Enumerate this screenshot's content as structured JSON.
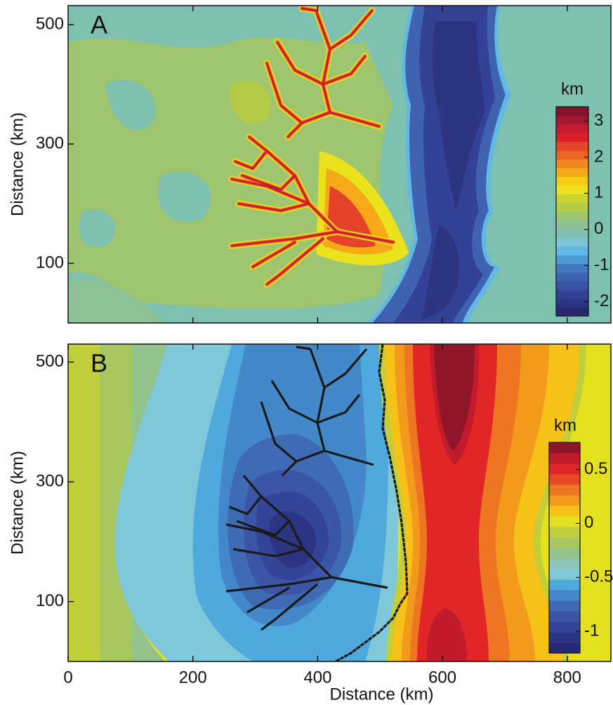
{
  "chart_data": [
    {
      "type": "contour",
      "label": "A",
      "y_label": "Distance (km)",
      "xlim": [
        0,
        870
      ],
      "xticks": [
        200,
        400,
        600,
        800
      ],
      "ylim": [
        0,
        532
      ],
      "yticks": [
        100,
        300,
        500
      ],
      "colorbar": {
        "label": "km",
        "lim": [
          -2.4,
          3.4
        ],
        "ticks": [
          -2,
          -1,
          0,
          1,
          2,
          3
        ],
        "colormap": [
          "#29286e",
          "#2d3482",
          "#334295",
          "#3a52a3",
          "#3f63b1",
          "#4279bf",
          "#4c9ad6",
          "#62b8e4",
          "#7ec6d6",
          "#7fc1b0",
          "#8cc296",
          "#9fc66e",
          "#b4cb48",
          "#cdd530",
          "#eae21d",
          "#f8cc14",
          "#f7a818",
          "#f2861f",
          "#ec6424",
          "#e5432a",
          "#dd2027",
          "#c31b2d",
          "#a31730",
          "#84122b"
        ]
      }
    },
    {
      "type": "contour",
      "label": "B",
      "y_label": "Distance (km)",
      "x_label": "Distance (km)",
      "xlim": [
        0,
        870
      ],
      "xticks": [
        0,
        200,
        400,
        600,
        800
      ],
      "ylim": [
        0,
        530
      ],
      "yticks": [
        100,
        300,
        500
      ],
      "colorbar": {
        "label": "km",
        "lim": [
          -1.2,
          0.75
        ],
        "ticks": [
          -1,
          -0.5,
          0,
          0.5
        ],
        "colormap": [
          "#262a72",
          "#2c3584",
          "#344497",
          "#3b56a6",
          "#3f6bb5",
          "#4388c9",
          "#4fa9dd",
          "#7ec8da",
          "#8dc5b6",
          "#93c28a",
          "#a7c65e",
          "#c2cf3a",
          "#e6e11e",
          "#f6c218",
          "#f39a1d",
          "#ee7623",
          "#e84a29",
          "#e22526",
          "#c11b2c",
          "#8f1529"
        ]
      }
    }
  ]
}
